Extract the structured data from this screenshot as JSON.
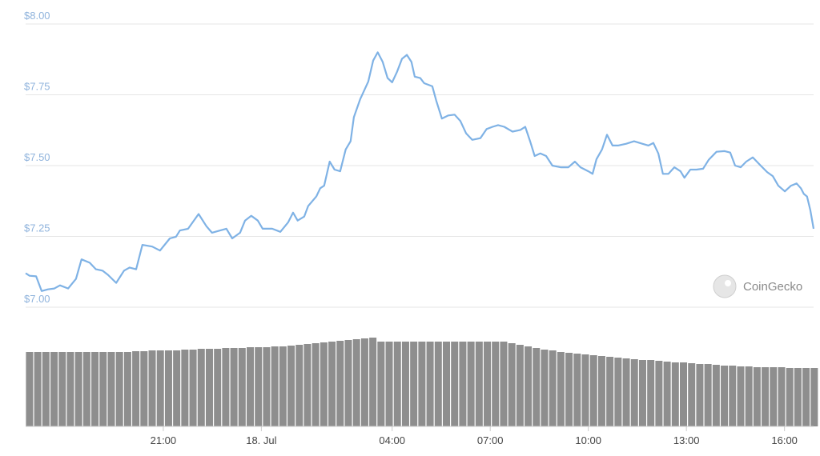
{
  "chart_data": [
    {
      "type": "line",
      "watermark": "CoinGecko",
      "xlim": [
        16.79,
        40.89
      ],
      "ylim": [
        7,
        8
      ],
      "yticks": [
        {
          "value": 7,
          "label": "$7.00"
        },
        {
          "value": 7.25,
          "label": "$7.25"
        },
        {
          "value": 7.5,
          "label": "$7.50"
        },
        {
          "value": 7.75,
          "label": "$7.75"
        },
        {
          "value": 8,
          "label": "$8.00"
        }
      ],
      "grid": true,
      "series": [
        {
          "color": "#7fb2e5",
          "x": [
            16.79,
            16.91,
            17.11,
            17.28,
            17.47,
            17.67,
            17.84,
            18.09,
            18.33,
            18.5,
            18.75,
            18.94,
            19.14,
            19.31,
            19.56,
            19.8,
            19.97,
            20.17,
            20.36,
            20.66,
            20.9,
            21.2,
            21.39,
            21.51,
            21.76,
            22.08,
            22.32,
            22.49,
            22.74,
            22.93,
            23.11,
            23.35,
            23.5,
            23.69,
            23.89,
            24.04,
            24.33,
            24.58,
            24.82,
            24.97,
            25.11,
            25.31,
            25.43,
            25.68,
            25.8,
            25.92,
            26.09,
            26.24,
            26.41,
            26.58,
            26.73,
            26.83,
            27.02,
            27.27,
            27.42,
            27.56,
            27.71,
            27.86,
            28.0,
            28.15,
            28.3,
            28.45,
            28.59,
            28.69,
            28.86,
            28.98,
            29.23,
            29.35,
            29.52,
            29.72,
            29.91,
            30.09,
            30.26,
            30.45,
            30.7,
            30.89,
            31.07,
            31.24,
            31.43,
            31.68,
            31.92,
            32.07,
            32.22,
            32.36,
            32.53,
            32.71,
            32.9,
            33.15,
            33.39,
            33.59,
            33.76,
            34.0,
            34.13,
            34.25,
            34.42,
            34.57,
            34.74,
            34.91,
            35.16,
            35.4,
            35.65,
            35.84,
            35.99,
            36.14,
            36.28,
            36.45,
            36.63,
            36.82,
            36.94,
            37.12,
            37.31,
            37.51,
            37.68,
            37.92,
            38.17,
            38.34,
            38.49,
            38.66,
            38.83,
            39.03,
            39.27,
            39.47,
            39.64,
            39.81,
            40.01,
            40.2,
            40.37,
            40.5,
            40.59,
            40.69,
            40.79,
            40.89
          ],
          "values": [
            7.12,
            7.111,
            7.109,
            7.057,
            7.063,
            7.066,
            7.077,
            7.066,
            7.1,
            7.169,
            7.157,
            7.134,
            7.129,
            7.114,
            7.086,
            7.129,
            7.14,
            7.134,
            7.22,
            7.214,
            7.2,
            7.243,
            7.249,
            7.271,
            7.277,
            7.329,
            7.286,
            7.263,
            7.271,
            7.277,
            7.243,
            7.263,
            7.306,
            7.323,
            7.306,
            7.277,
            7.277,
            7.266,
            7.3,
            7.334,
            7.306,
            7.32,
            7.357,
            7.391,
            7.42,
            7.429,
            7.514,
            7.486,
            7.48,
            7.557,
            7.586,
            7.671,
            7.734,
            7.797,
            7.871,
            7.9,
            7.866,
            7.809,
            7.794,
            7.831,
            7.877,
            7.891,
            7.866,
            7.814,
            7.809,
            7.791,
            7.78,
            7.729,
            7.666,
            7.677,
            7.68,
            7.657,
            7.614,
            7.591,
            7.597,
            7.629,
            7.637,
            7.643,
            7.637,
            7.62,
            7.626,
            7.637,
            7.586,
            7.534,
            7.543,
            7.534,
            7.5,
            7.494,
            7.494,
            7.514,
            7.494,
            7.48,
            7.471,
            7.523,
            7.557,
            7.609,
            7.571,
            7.571,
            7.577,
            7.586,
            7.577,
            7.571,
            7.58,
            7.543,
            7.471,
            7.471,
            7.494,
            7.48,
            7.457,
            7.486,
            7.486,
            7.489,
            7.52,
            7.549,
            7.551,
            7.546,
            7.5,
            7.494,
            7.514,
            7.529,
            7.5,
            7.477,
            7.463,
            7.429,
            7.409,
            7.429,
            7.437,
            7.42,
            7.4,
            7.391,
            7.343,
            7.277
          ]
        }
      ]
    },
    {
      "type": "bar",
      "color": "#8e8e8e",
      "xlim": [
        16.79,
        40.89
      ],
      "xticks": [
        {
          "value": 21,
          "label": "21:00"
        },
        {
          "value": 24,
          "label": "18. Jul"
        },
        {
          "value": 28,
          "label": "04:00"
        },
        {
          "value": 31,
          "label": "07:00"
        },
        {
          "value": 34,
          "label": "10:00"
        },
        {
          "value": 37,
          "label": "13:00"
        },
        {
          "value": 40,
          "label": "16:00"
        }
      ],
      "x": [
        16.8,
        17.05,
        17.3,
        17.55,
        17.8,
        18.05,
        18.3,
        18.55,
        18.8,
        19.05,
        19.3,
        19.55,
        19.8,
        20.05,
        20.3,
        20.55,
        20.8,
        21.05,
        21.3,
        21.55,
        21.8,
        22.05,
        22.3,
        22.55,
        22.8,
        23.05,
        23.3,
        23.55,
        23.8,
        24.05,
        24.3,
        24.55,
        24.8,
        25.05,
        25.3,
        25.55,
        25.8,
        26.05,
        26.3,
        26.55,
        26.8,
        27.05,
        27.3,
        27.55,
        27.8,
        28.05,
        28.3,
        28.55,
        28.8,
        29.05,
        29.3,
        29.55,
        29.8,
        30.05,
        30.3,
        30.55,
        30.8,
        31.05,
        31.3,
        31.55,
        31.8,
        32.05,
        32.3,
        32.55,
        32.8,
        33.05,
        33.3,
        33.55,
        33.8,
        34.05,
        34.3,
        34.55,
        34.8,
        35.05,
        35.3,
        35.55,
        35.8,
        36.05,
        36.3,
        36.55,
        36.8,
        37.05,
        37.3,
        37.55,
        37.8,
        38.05,
        38.3,
        38.55,
        38.8,
        39.05,
        39.3,
        39.55,
        39.8,
        40.05,
        40.3,
        40.55,
        40.8
      ],
      "values": [
        93,
        93,
        93,
        93,
        93,
        93,
        93,
        93,
        93,
        93,
        93,
        93,
        93,
        94,
        94,
        95,
        95,
        95,
        95,
        96,
        96,
        97,
        97,
        97,
        98,
        98,
        98,
        99,
        99,
        99,
        100,
        100,
        101,
        102,
        103,
        104,
        105,
        106,
        107,
        108,
        109,
        110,
        111,
        106,
        106,
        106,
        106,
        106,
        106,
        106,
        106,
        106,
        106,
        106,
        106,
        106,
        106,
        106,
        106,
        104,
        102,
        100,
        98,
        96,
        95,
        93,
        92,
        91,
        90,
        89,
        88,
        87,
        86,
        85,
        84,
        83,
        83,
        82,
        81,
        80,
        80,
        79,
        78,
        78,
        77,
        76,
        76,
        75,
        75,
        74,
        74,
        74,
        74,
        73,
        73,
        73,
        73
      ]
    }
  ]
}
